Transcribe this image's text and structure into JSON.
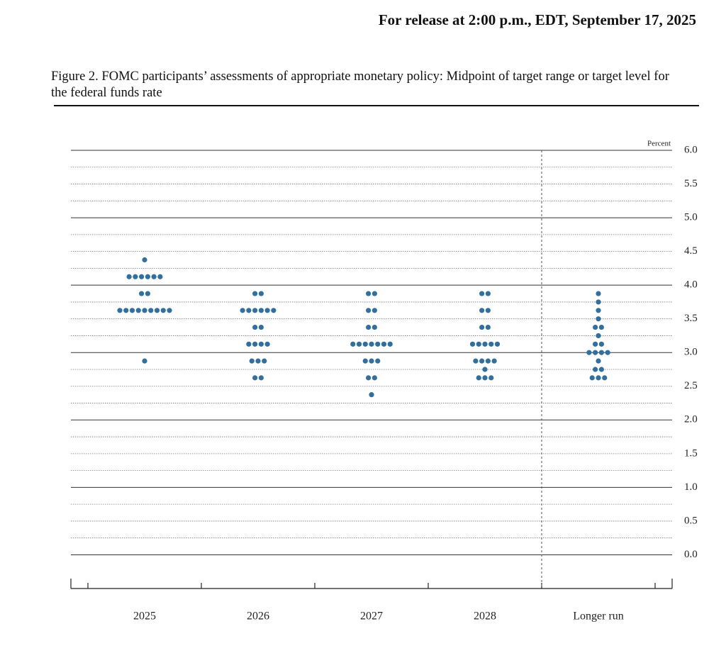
{
  "release": "For release at 2:00 p.m., EDT, September 17, 2025",
  "chart_data": {
    "type": "dot",
    "title": "Figure 2. FOMC participants’ assessments of appropriate monetary policy: Midpoint of target range or target level for the federal funds rate",
    "y_label": "Percent",
    "color": "#31709e",
    "categories": [
      "2025",
      "2026",
      "2027",
      "2028",
      "Longer run"
    ],
    "dots": [
      [
        {
          "rate": 4.375,
          "count": 1
        },
        {
          "rate": 4.125,
          "count": 6
        },
        {
          "rate": 3.875,
          "count": 2
        },
        {
          "rate": 3.625,
          "count": 9
        },
        {
          "rate": 2.875,
          "count": 1
        }
      ],
      [
        {
          "rate": 3.875,
          "count": 2
        },
        {
          "rate": 3.625,
          "count": 6
        },
        {
          "rate": 3.375,
          "count": 2
        },
        {
          "rate": 3.125,
          "count": 4
        },
        {
          "rate": 2.875,
          "count": 3
        },
        {
          "rate": 2.625,
          "count": 2
        }
      ],
      [
        {
          "rate": 3.875,
          "count": 2
        },
        {
          "rate": 3.625,
          "count": 2
        },
        {
          "rate": 3.375,
          "count": 2
        },
        {
          "rate": 3.125,
          "count": 7
        },
        {
          "rate": 2.875,
          "count": 3
        },
        {
          "rate": 2.625,
          "count": 2
        },
        {
          "rate": 2.375,
          "count": 1
        }
      ],
      [
        {
          "rate": 3.875,
          "count": 2
        },
        {
          "rate": 3.625,
          "count": 2
        },
        {
          "rate": 3.375,
          "count": 2
        },
        {
          "rate": 3.125,
          "count": 5
        },
        {
          "rate": 2.875,
          "count": 4
        },
        {
          "rate": 2.75,
          "count": 1
        },
        {
          "rate": 2.625,
          "count": 3
        }
      ],
      [
        {
          "rate": 3.875,
          "count": 1
        },
        {
          "rate": 3.75,
          "count": 1
        },
        {
          "rate": 3.625,
          "count": 1
        },
        {
          "rate": 3.5,
          "count": 1
        },
        {
          "rate": 3.375,
          "count": 2
        },
        {
          "rate": 3.25,
          "count": 1
        },
        {
          "rate": 3.125,
          "count": 2
        },
        {
          "rate": 3.0,
          "count": 4
        },
        {
          "rate": 2.875,
          "count": 1
        },
        {
          "rate": 2.75,
          "count": 2
        },
        {
          "rate": 2.625,
          "count": 3
        }
      ]
    ],
    "ylim": [
      -0.5,
      6
    ],
    "yticks": [
      {
        "value": 0,
        "label": "0.0"
      },
      0.5,
      {
        "value": 1,
        "label": "1.0"
      },
      1.5,
      {
        "value": 2,
        "label": "2.0"
      },
      2.5,
      {
        "value": 3,
        "label": "3.0"
      },
      3.5,
      {
        "value": 4,
        "label": "4.0"
      },
      4.5,
      {
        "value": 5,
        "label": "5.0"
      },
      5.5,
      {
        "value": 6,
        "label": "6.0"
      }
    ],
    "minor_yticks": [
      0.25,
      0.75,
      1.25,
      1.75,
      2.25,
      2.75,
      3.25,
      3.75,
      4.25,
      4.75,
      5.25,
      5.75
    ],
    "grid": true
  }
}
